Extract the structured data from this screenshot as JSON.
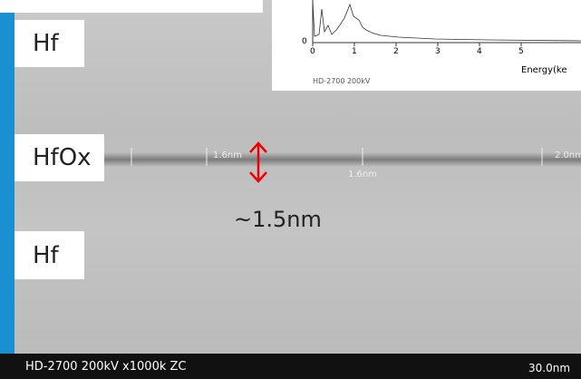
{
  "layers": [
    {
      "label": "Hf"
    },
    {
      "label": "HfOx"
    },
    {
      "label": "Hf"
    }
  ],
  "thickness_annotation": "~1.5nm",
  "measurements": [
    "1.6nm",
    "1.6nm",
    "2.0nm"
  ],
  "footer": {
    "info": "HD-2700  200kV  x1000k  ZC",
    "scale": "30.0nm"
  },
  "inset": {
    "x_ticks": [
      "0",
      "1",
      "2",
      "3",
      "4",
      "5"
    ],
    "y_tick": "0",
    "x_label": "Energy(ke",
    "info": "HD-2700  200kV"
  }
}
